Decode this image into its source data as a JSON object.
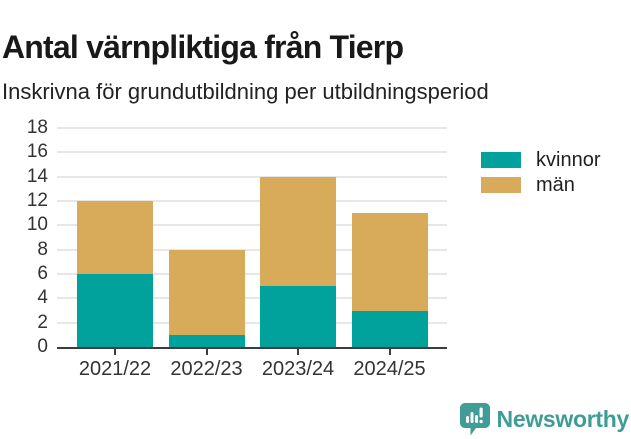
{
  "title": "Antal värnpliktiga från Tierp",
  "subtitle": "Inskrivna för grundutbildning per utbildningsperiod",
  "chart_data": {
    "type": "bar",
    "stacked": true,
    "title": "Antal värnpliktiga från Tierp",
    "subtitle": "Inskrivna för grundutbildning per utbildningsperiod",
    "categories": [
      "2021/22",
      "2022/23",
      "2023/24",
      "2024/25"
    ],
    "series": [
      {
        "name": "kvinnor",
        "color": "#00a29b",
        "values": [
          6,
          1,
          5,
          3
        ]
      },
      {
        "name": "män",
        "color": "#d8ab5a",
        "values": [
          6,
          7,
          9,
          8
        ]
      }
    ],
    "totals": [
      12,
      8,
      14,
      11
    ],
    "xlabel": "",
    "ylabel": "",
    "ylim": [
      0,
      18
    ],
    "ytick_step": 2,
    "ytick_labels": [
      "0",
      "2",
      "4",
      "6",
      "8",
      "10",
      "12",
      "14",
      "16",
      "18"
    ],
    "grid": "horizontal",
    "legend_position": "right-of-plot"
  },
  "colors": {
    "kvinnor": "#00a29b",
    "man": "#d8ab5a",
    "axis_line": "#3d3d3d",
    "gridline": "#e7e7e7",
    "tick_text": "#333333",
    "brand": "#3f9c96"
  },
  "footer": {
    "brand": "Newsworthy"
  }
}
